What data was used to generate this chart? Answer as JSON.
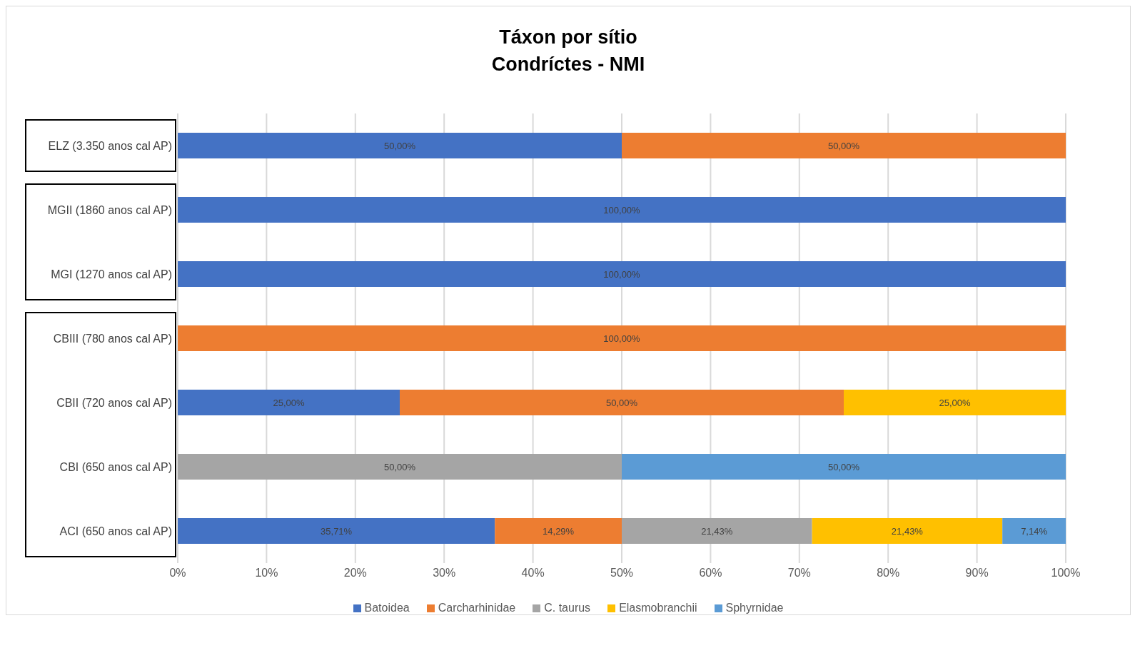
{
  "chart_data": {
    "type": "bar",
    "orientation": "horizontal",
    "stacked": true,
    "title": "Táxon por sítio\nCondríctes - NMI",
    "categories": [
      "ELZ (3.350 anos cal AP)",
      "MGII (1860 anos cal AP)",
      "MGI (1270 anos cal AP)",
      "CBIII (780 anos cal AP)",
      "CBII (720 anos cal AP)",
      "CBI (650 anos cal AP)",
      "ACI (650 anos cal AP)"
    ],
    "series": [
      {
        "name": "Batoidea",
        "color": "#4472c4",
        "values": [
          50,
          100,
          100,
          null,
          25,
          null,
          35.71
        ],
        "value_labels": [
          "50,00%",
          "100,00%",
          "100,00%",
          null,
          "25,00%",
          null,
          "35,71%"
        ]
      },
      {
        "name": "Carcharhinidae",
        "color": "#ed7d31",
        "values": [
          50,
          null,
          null,
          100,
          50,
          null,
          14.29
        ],
        "value_labels": [
          "50,00%",
          null,
          null,
          "100,00%",
          "50,00%",
          null,
          "14,29%"
        ]
      },
      {
        "name": "C. taurus",
        "color": "#a5a5a5",
        "values": [
          null,
          null,
          null,
          null,
          null,
          50,
          21.43
        ],
        "value_labels": [
          null,
          null,
          null,
          null,
          null,
          "50,00%",
          "21,43%"
        ]
      },
      {
        "name": "Elasmobranchii",
        "color": "#ffc000",
        "values": [
          null,
          null,
          null,
          null,
          25,
          null,
          21.43
        ],
        "value_labels": [
          null,
          null,
          null,
          null,
          "25,00%",
          null,
          "21,43%"
        ]
      },
      {
        "name": "Sphyrnidae",
        "color": "#5b9bd5",
        "values": [
          null,
          null,
          null,
          null,
          null,
          50,
          7.14
        ],
        "value_labels": [
          null,
          null,
          null,
          null,
          null,
          "50,00%",
          "7,14%"
        ]
      }
    ],
    "xlim": [
      0,
      100
    ],
    "xticks": [
      {
        "value": 0,
        "label": "0%"
      },
      {
        "value": 10,
        "label": "10%"
      },
      {
        "value": 20,
        "label": "20%"
      },
      {
        "value": 30,
        "label": "30%"
      },
      {
        "value": 40,
        "label": "40%"
      },
      {
        "value": 50,
        "label": "50%"
      },
      {
        "value": 60,
        "label": "60%"
      },
      {
        "value": 70,
        "label": "70%"
      },
      {
        "value": 80,
        "label": "80%"
      },
      {
        "value": 90,
        "label": "90%"
      },
      {
        "value": 100,
        "label": "100%"
      }
    ],
    "grid": "x",
    "legend": "bottom"
  }
}
